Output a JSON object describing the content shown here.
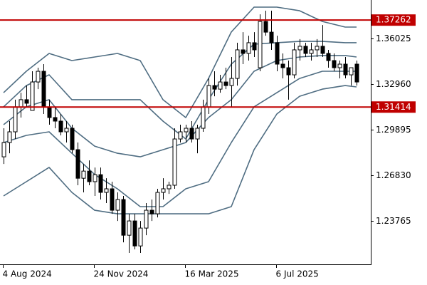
{
  "chart_data": {
    "type": "candlestick",
    "categories": [
      "4 Aug 2024",
      null,
      null,
      null,
      null,
      null,
      null,
      null,
      null,
      null,
      null,
      null,
      null,
      null,
      null,
      null,
      "24 Nov 2024",
      null,
      null,
      null,
      null,
      null,
      null,
      null,
      null,
      null,
      null,
      null,
      null,
      null,
      null,
      null,
      "16 Mar 2025",
      null,
      null,
      null,
      null,
      null,
      null,
      null,
      null,
      null,
      null,
      null,
      null,
      null,
      null,
      null,
      "6 Jul 2025",
      null,
      null,
      null,
      null,
      null,
      null,
      null,
      null,
      null,
      null,
      null,
      null,
      null,
      null
    ],
    "open": [
      1.2807,
      1.2903,
      1.2975,
      1.3143,
      1.3191,
      1.3119,
      1.331,
      1.3382,
      1.3143,
      1.3071,
      1.3047,
      1.2975,
      1.2999,
      1.2855,
      1.2663,
      1.2711,
      1.264,
      1.2687,
      1.2568,
      1.2592,
      1.2448,
      1.252,
      1.228,
      1.2376,
      1.2208,
      1.2328,
      1.2448,
      1.2424,
      1.2568,
      1.2592,
      1.2616,
      1.2927,
      1.2975,
      1.2999,
      1.2927,
      1.2999,
      1.3143,
      1.3286,
      1.3262,
      1.331,
      1.3286,
      1.3334,
      1.3526,
      1.3502,
      1.3574,
      1.3406,
      1.3717,
      1.3645,
      1.3574,
      1.343,
      1.3406,
      1.3358,
      1.3526,
      1.355,
      1.3502,
      1.3526,
      1.355,
      1.3502,
      1.3454,
      1.3406,
      1.343,
      1.3358,
      1.343
    ],
    "high": [
      1.2999,
      1.3047,
      1.3191,
      1.3238,
      1.3286,
      1.3382,
      1.3406,
      1.343,
      1.3191,
      1.3143,
      1.3095,
      1.3047,
      1.3023,
      1.2903,
      1.2759,
      1.2783,
      1.2735,
      1.2735,
      1.2663,
      1.264,
      1.2568,
      1.2544,
      1.2424,
      1.2424,
      1.2376,
      1.2496,
      1.252,
      1.2592,
      1.2663,
      1.264,
      1.2999,
      1.3023,
      1.3023,
      1.3047,
      1.3023,
      1.3191,
      1.3334,
      1.3382,
      1.3358,
      1.3406,
      1.3478,
      1.3574,
      1.3645,
      1.3621,
      1.3645,
      1.3765,
      1.3789,
      1.3789,
      1.3621,
      1.3502,
      1.3454,
      1.3574,
      1.3598,
      1.3574,
      1.3574,
      1.3598,
      1.3693,
      1.3526,
      1.3502,
      1.3454,
      1.3478,
      1.3406,
      1.3454
    ],
    "low": [
      1.2759,
      1.2831,
      1.2927,
      1.3071,
      1.3143,
      1.3119,
      1.3262,
      1.3095,
      1.3023,
      1.2999,
      1.2951,
      1.2903,
      1.2831,
      1.2616,
      1.2568,
      1.2616,
      1.2544,
      1.252,
      1.2496,
      1.2424,
      1.2376,
      1.2232,
      1.2161,
      1.2185,
      1.2161,
      1.228,
      1.2376,
      1.24,
      1.252,
      1.2558,
      1.2592,
      1.2903,
      1.2903,
      1.2903,
      1.2831,
      1.2975,
      1.3095,
      1.3214,
      1.3238,
      1.3262,
      1.3143,
      1.3286,
      1.343,
      1.3454,
      1.3478,
      1.3382,
      1.3621,
      1.3526,
      1.3382,
      1.3334,
      1.3191,
      1.3334,
      1.3454,
      1.3478,
      1.3454,
      1.3478,
      1.3478,
      1.3406,
      1.3382,
      1.3334,
      1.3334,
      1.3286,
      1.3286
    ],
    "close": [
      1.2903,
      1.2975,
      1.3143,
      1.3191,
      1.3167,
      1.331,
      1.3382,
      1.3143,
      1.3071,
      1.3047,
      1.2975,
      1.2999,
      1.2855,
      1.2663,
      1.2711,
      1.264,
      1.2687,
      1.2568,
      1.2592,
      1.2448,
      1.252,
      1.228,
      1.2376,
      1.2208,
      1.2328,
      1.2448,
      1.2424,
      1.2568,
      1.2592,
      1.2616,
      1.2927,
      1.2975,
      1.2999,
      1.2927,
      1.2999,
      1.3143,
      1.3286,
      1.3262,
      1.331,
      1.3286,
      1.3334,
      1.3526,
      1.3502,
      1.3574,
      1.3526,
      1.3717,
      1.3645,
      1.3574,
      1.343,
      1.3406,
      1.3358,
      1.3526,
      1.355,
      1.3502,
      1.3526,
      1.355,
      1.3502,
      1.3454,
      1.3406,
      1.343,
      1.3358,
      1.3406,
      1.331
    ],
    "up_color": "#ffffff",
    "down_color": "#000000",
    "bands": [
      {
        "color": "#4f6d82",
        "x": [
          0,
          4,
          8,
          12,
          16,
          20,
          24,
          28,
          32,
          36,
          40,
          44,
          48,
          52,
          56,
          60,
          62
        ],
        "values": [
          1.3238,
          1.3382,
          1.3502,
          1.3454,
          1.3478,
          1.3502,
          1.3454,
          1.3191,
          1.3071,
          1.3334,
          1.3646,
          1.3813,
          1.3813,
          1.3789,
          1.3717,
          1.3679,
          1.3679
        ]
      },
      {
        "color": "#4f6d82",
        "x": [
          0,
          4,
          8,
          12,
          16,
          20,
          24,
          28,
          32,
          36,
          40,
          44,
          48,
          52,
          56,
          60,
          62
        ],
        "values": [
          1.3143,
          1.3286,
          1.3358,
          1.3191,
          1.3191,
          1.3191,
          1.3191,
          1.3047,
          1.2927,
          1.3191,
          1.343,
          1.3564,
          1.3574,
          1.3583,
          1.3583,
          1.3574,
          1.3574
        ]
      },
      {
        "color": "#4f6d82",
        "x": [
          0,
          4,
          8,
          12,
          16,
          20,
          24,
          28,
          32,
          36,
          40,
          44,
          48,
          52,
          56,
          60,
          62
        ],
        "values": [
          1.3023,
          1.3143,
          1.3191,
          1.2999,
          1.2879,
          1.2831,
          1.2807,
          1.2855,
          1.2903,
          1.3071,
          1.3191,
          1.3382,
          1.3454,
          1.3478,
          1.3488,
          1.3488,
          1.3478
        ]
      },
      {
        "color": "#4f6d82",
        "x": [
          0,
          4,
          8,
          12,
          16,
          20,
          24,
          28,
          32,
          36,
          40,
          44,
          48,
          52,
          56,
          60,
          62
        ],
        "values": [
          1.2903,
          1.2951,
          1.2975,
          1.2831,
          1.2688,
          1.2592,
          1.2472,
          1.2472,
          1.2592,
          1.264,
          1.2903,
          1.3143,
          1.3238,
          1.3334,
          1.3382,
          1.3382,
          1.3382
        ]
      },
      {
        "color": "#4f6d82",
        "x": [
          0,
          4,
          8,
          12,
          16,
          20,
          24,
          28,
          32,
          36,
          40,
          44,
          48,
          52,
          56,
          60,
          62
        ],
        "values": [
          1.2544,
          1.264,
          1.2736,
          1.2568,
          1.2448,
          1.2424,
          1.2424,
          1.2424,
          1.2424,
          1.2424,
          1.2472,
          1.2855,
          1.3095,
          1.3214,
          1.3262,
          1.3286,
          1.3277
        ]
      }
    ],
    "hlines": [
      {
        "value": 1.37262,
        "color": "#c00000"
      },
      {
        "value": 1.31414,
        "color": "#c00000"
      }
    ],
    "ylim": [
      1.20891,
      1.38611
    ],
    "yticks": [
      1.36025,
      {
        "value": 1.3296,
        "label": "1.32960"
      },
      1.29895,
      {
        "value": 1.2683,
        "label": "1.26830"
      },
      1.23765
    ]
  }
}
